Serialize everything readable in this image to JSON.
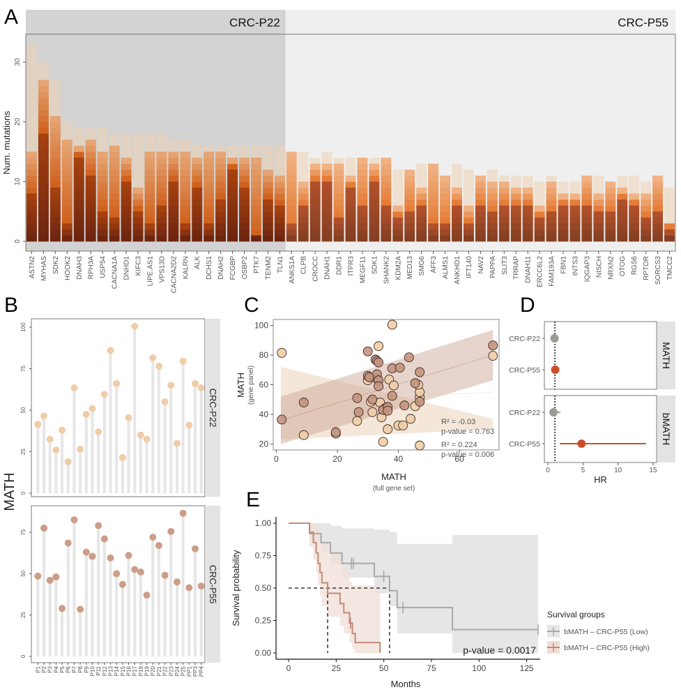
{
  "figure": {
    "panel_labels": [
      "A",
      "B",
      "C",
      "D",
      "E"
    ]
  },
  "chart_data": [
    {
      "panel": "A",
      "type": "bar",
      "stacked": true,
      "ylabel": "Num. mutations",
      "xlabel": "",
      "ylim": [
        0,
        35
      ],
      "yticks": [
        0,
        10,
        20,
        30
      ],
      "facets": [
        {
          "label": "CRC-P22",
          "count": 22
        },
        {
          "label": "CRC-P55",
          "count": 31
        }
      ],
      "categories": [
        "ASTN2",
        "MYHAS",
        "SDK2",
        "HOOK2",
        "DNAH3",
        "RPH3A",
        "USP54",
        "CACNA1A",
        "DNHD1",
        "KIFC3",
        "LIPE.AS1",
        "VPS13D",
        "CACNA2D2",
        "KALRN",
        "ALK",
        "DCHS1",
        "DNAH2",
        "FCGBP",
        "OSBP2",
        "PTK7",
        "TENM2",
        "TLN1",
        "ANKS1A",
        "CLPB",
        "CROCC",
        "DNAH1",
        "DDR1",
        "ITPR3",
        "MEGF11",
        "SDK1",
        "SHANK2",
        "KDM2A",
        "MED13",
        "SMG6",
        "AFF3",
        "ALMS1",
        "ANKHD1",
        "IFT140",
        "NAV2",
        "PAPPA",
        "SLIT3",
        "TRRAP",
        "DNAH11",
        "ERCC6L2",
        "FAM193A",
        "FBN1",
        "INTS3",
        "IQGAP3",
        "NISCH",
        "NRXN2",
        "OTOG",
        "RGS6",
        "RPTOR",
        "SORCS3",
        "TMCC2"
      ],
      "totals": [
        33,
        30,
        27,
        20,
        19,
        19,
        19,
        18,
        18,
        18,
        18,
        18,
        17,
        17,
        16,
        16,
        16,
        16,
        16,
        16,
        16,
        16,
        15,
        15,
        14,
        15,
        14,
        14,
        14,
        14,
        13,
        12,
        12,
        13,
        12,
        11,
        13,
        12,
        11,
        12,
        11,
        11,
        11,
        10,
        11,
        10,
        10,
        11,
        11,
        10,
        11,
        11,
        10,
        11,
        9
      ],
      "solid_heights": [
        15,
        27,
        21,
        17,
        16,
        17,
        15,
        16,
        14,
        9,
        15,
        15,
        15,
        15,
        14,
        15,
        15,
        14,
        14,
        14,
        12,
        11,
        15,
        10,
        13,
        13,
        13,
        11,
        14,
        13,
        14,
        6,
        12,
        9,
        13,
        11,
        9,
        6,
        11,
        10,
        10,
        9,
        9,
        6,
        10,
        8,
        8,
        11,
        8,
        10,
        9,
        8,
        8,
        11,
        3
      ],
      "dark_heights": [
        8,
        18,
        9,
        3,
        14,
        11,
        5,
        4,
        10,
        5,
        3,
        6,
        10,
        3,
        9,
        3,
        7,
        12,
        9,
        1,
        7,
        6,
        3,
        6,
        10,
        10,
        4,
        9,
        6,
        10,
        6,
        4,
        5,
        6,
        3,
        3,
        6,
        3,
        6,
        5,
        6,
        6,
        6,
        4,
        5,
        6,
        6,
        6,
        5,
        5,
        7,
        6,
        4,
        5,
        2
      ],
      "colors": {
        "p22_bg": "#d3d3d3",
        "p55_bg": "#efefef",
        "stack_light": "#ecd2b5",
        "stack_mid": "#e07a35",
        "stack_dark": "#7a2a10"
      }
    },
    {
      "panel": "B",
      "type": "lollipop",
      "ylabel": "MATH",
      "facets": [
        {
          "label": "CRC-P22",
          "ylim": [
            0,
            100
          ],
          "yticks": [
            0,
            25,
            50,
            75,
            100
          ],
          "categories": [
            "P1",
            "P2",
            "P3",
            "P4",
            "P5",
            "P6",
            "P7",
            "P8",
            "P9",
            "P10",
            "P11",
            "P12",
            "P13",
            "P14",
            "P15",
            "P16",
            "P17",
            "P18",
            "P19",
            "P20",
            "P21",
            "P22",
            "P23",
            "P24",
            "P25",
            "PP1",
            "PP3",
            "PP4"
          ],
          "values": [
            41.5,
            46.5,
            32.5,
            26,
            38,
            19,
            63.5,
            26.5,
            47.5,
            51,
            37,
            59.5,
            86,
            66,
            21.5,
            45.5,
            100.5,
            35,
            32.5,
            81.5,
            76.5,
            55,
            65,
            30,
            79.5,
            41,
            66,
            63.5
          ],
          "color": "#efcda9"
        },
        {
          "label": "CRC-P55",
          "ylim": [
            0,
            90
          ],
          "yticks": [
            0,
            25,
            50,
            75
          ],
          "categories": [
            "P1",
            "P2",
            "P3",
            "P4",
            "P5",
            "P6",
            "P7",
            "P8",
            "P9",
            "P10",
            "P11",
            "P12",
            "P13",
            "P14",
            "P15",
            "P16",
            "P17",
            "P18",
            "P19",
            "P20",
            "P21",
            "P22",
            "P23",
            "P24",
            "P25",
            "PP1",
            "PP3",
            "PP4"
          ],
          "values": [
            48.5,
            77.5,
            46,
            48,
            29,
            68.5,
            82.5,
            28.5,
            63,
            60.5,
            79,
            71,
            59.5,
            50,
            43.5,
            61,
            52.5,
            51,
            37,
            72,
            67,
            49,
            75.5,
            45,
            86.5,
            41.5,
            65,
            42.5
          ],
          "color": "#cc9d88"
        }
      ]
    },
    {
      "panel": "C",
      "type": "scatter",
      "xlabel": "MATH",
      "xlabel_sub": "(full gene set)",
      "ylabel": "MATH",
      "ylabel_sub": "(gene panel)",
      "xlim": [
        -1,
        73
      ],
      "ylim": [
        16,
        104
      ],
      "xticks": [
        0,
        20,
        40,
        60
      ],
      "yticks": [
        20,
        40,
        60,
        80,
        100
      ],
      "series": [
        {
          "name": "CRC-P22",
          "color": "#efcda9",
          "r2_label": "R² = -0.03",
          "p_label": "p-value = 0.763",
          "fit": [
            [
              1.5,
              48
            ],
            [
              71,
              55
            ]
          ],
          "points": [
            [
              1.8,
              81.5
            ],
            [
              9,
              26
            ],
            [
              19.5,
              27
            ],
            [
              26.5,
              35.5
            ],
            [
              30,
              63
            ],
            [
              31.5,
              41.5
            ],
            [
              31,
              48.5
            ],
            [
              33.5,
              86
            ],
            [
              34,
              48
            ],
            [
              34.5,
              38
            ],
            [
              35,
              21.5
            ],
            [
              36.5,
              30
            ],
            [
              37,
              63.5
            ],
            [
              38,
              100.5
            ],
            [
              38.5,
              59.5
            ],
            [
              40,
              32.5
            ],
            [
              41.5,
              32.5
            ],
            [
              44,
              37
            ],
            [
              45.5,
              45.5
            ],
            [
              47,
              51.5
            ],
            [
              47,
              55
            ],
            [
              46.5,
              60
            ],
            [
              47,
              19
            ],
            [
              71,
              79.5
            ],
            [
              33,
              64
            ],
            [
              35.5,
              44
            ]
          ]
        },
        {
          "name": "CRC-P55",
          "color": "#c4937e",
          "r2_label": "R² = 0.224",
          "p_label": "p-value = 0.006",
          "fit": [
            [
              1.5,
              36
            ],
            [
              71,
              80
            ]
          ],
          "points": [
            [
              1.8,
              36.5
            ],
            [
              9,
              48
            ],
            [
              19.5,
              28
            ],
            [
              26.5,
              51
            ],
            [
              27,
              41.5
            ],
            [
              30,
              82.5
            ],
            [
              30,
              66
            ],
            [
              31.5,
              50
            ],
            [
              32.5,
              77
            ],
            [
              33,
              76
            ],
            [
              33.5,
              75
            ],
            [
              33,
              67
            ],
            [
              33.5,
              63
            ],
            [
              33.5,
              59
            ],
            [
              35,
              43
            ],
            [
              36.5,
              45
            ],
            [
              36.5,
              42.5
            ],
            [
              38,
              71
            ],
            [
              38,
              52.5
            ],
            [
              40.5,
              71.5
            ],
            [
              42,
              46
            ],
            [
              43.5,
              78.5
            ],
            [
              47,
              68.5
            ],
            [
              45.5,
              61
            ],
            [
              47,
              48.5
            ],
            [
              71,
              86.5
            ],
            [
              30.5,
              65
            ]
          ]
        }
      ]
    },
    {
      "panel": "D",
      "type": "forest",
      "xlabel": "HR",
      "xlim": [
        -0.5,
        15.5
      ],
      "xticks": [
        0,
        5,
        10,
        15
      ],
      "reference_line": 1,
      "facets": [
        {
          "label": "MATH",
          "rows": [
            {
              "label": "CRC-P22",
              "hr": 0.95,
              "lo": 0.85,
              "hi": 1.1,
              "color": "#9e9a96"
            },
            {
              "label": "CRC-P55",
              "hr": 1.05,
              "lo": 0.95,
              "hi": 1.15,
              "color": "#c9502a"
            }
          ]
        },
        {
          "label": "bMATH",
          "rows": [
            {
              "label": "CRC-P22",
              "hr": 0.8,
              "lo": 0.5,
              "hi": 1.8,
              "color": "#9e9a96"
            },
            {
              "label": "CRC-P55",
              "hr": 4.8,
              "lo": 1.7,
              "hi": 14.0,
              "color": "#c9502a"
            }
          ]
        }
      ]
    },
    {
      "panel": "E",
      "type": "line",
      "subtype": "kaplan-meier",
      "xlabel": "Months",
      "ylabel": "Survival probability",
      "xlim": [
        -6,
        133
      ],
      "ylim": [
        -0.04,
        1.04
      ],
      "xticks": [
        0,
        25,
        50,
        75,
        100,
        125
      ],
      "yticks": [
        "0.00",
        "0.25",
        "0.50",
        "0.75",
        "1.00"
      ],
      "pvalue_label": "p-value = 0.0017",
      "legend_title": "Survival groups",
      "legend_position": "right",
      "medians": [
        20.5,
        53
      ],
      "series": [
        {
          "name": "bMATH – CRC-P55 (Low)",
          "color": "#a8a8a8",
          "band_color": "#e6e6e6",
          "steps": [
            [
              0,
              1.0
            ],
            [
              11,
              1.0
            ],
            [
              11,
              0.92
            ],
            [
              17,
              0.92
            ],
            [
              17,
              0.85
            ],
            [
              22,
              0.85
            ],
            [
              22,
              0.77
            ],
            [
              28,
              0.77
            ],
            [
              28,
              0.69
            ],
            [
              45,
              0.69
            ],
            [
              45,
              0.59
            ],
            [
              53,
              0.59
            ],
            [
              53,
              0.48
            ],
            [
              57,
              0.48
            ],
            [
              57,
              0.35
            ],
            [
              86,
              0.35
            ],
            [
              86,
              0.18
            ],
            [
              131,
              0.18
            ]
          ],
          "lower": [
            [
              0,
              1.0
            ],
            [
              11,
              0.86
            ],
            [
              17,
              0.78
            ],
            [
              22,
              0.68
            ],
            [
              28,
              0.58
            ],
            [
              45,
              0.46
            ],
            [
              53,
              0.36
            ],
            [
              57,
              0.15
            ],
            [
              86,
              0.0
            ],
            [
              131,
              0.0
            ]
          ],
          "upper": [
            [
              0,
              1.0
            ],
            [
              11,
              1.0
            ],
            [
              17,
              1.0
            ],
            [
              22,
              0.98
            ],
            [
              28,
              0.96
            ],
            [
              45,
              0.95
            ],
            [
              53,
              0.93
            ],
            [
              57,
              0.84
            ],
            [
              86,
              0.91
            ],
            [
              131,
              0.91
            ]
          ],
          "censor": [
            33,
            34,
            50,
            60,
            131
          ]
        },
        {
          "name": "bMATH – CRC-P55 (High)",
          "color": "#c28a78",
          "band_color": "#f0ddd5",
          "steps": [
            [
              0,
              1.0
            ],
            [
              11,
              1.0
            ],
            [
              11,
              0.93
            ],
            [
              13,
              0.93
            ],
            [
              13,
              0.85
            ],
            [
              14.5,
              0.85
            ],
            [
              14.5,
              0.77
            ],
            [
              15.5,
              0.77
            ],
            [
              15.5,
              0.69
            ],
            [
              16.5,
              0.69
            ],
            [
              16.5,
              0.62
            ],
            [
              17.5,
              0.62
            ],
            [
              17.5,
              0.54
            ],
            [
              20.5,
              0.54
            ],
            [
              20.5,
              0.46
            ],
            [
              27,
              0.46
            ],
            [
              27,
              0.38
            ],
            [
              29,
              0.38
            ],
            [
              29,
              0.31
            ],
            [
              32,
              0.31
            ],
            [
              32,
              0.23
            ],
            [
              33.5,
              0.23
            ],
            [
              33.5,
              0.15
            ],
            [
              35,
              0.15
            ],
            [
              35,
              0.08
            ],
            [
              48,
              0.08
            ],
            [
              48,
              0.0
            ]
          ],
          "lower": [
            [
              0,
              1.0
            ],
            [
              11,
              0.82
            ],
            [
              13,
              0.72
            ],
            [
              14.5,
              0.62
            ],
            [
              15.5,
              0.52
            ],
            [
              16.5,
              0.44
            ],
            [
              17.5,
              0.36
            ],
            [
              20.5,
              0.28
            ],
            [
              27,
              0.21
            ],
            [
              29,
              0.15
            ],
            [
              32,
              0.08
            ],
            [
              33.5,
              0.03
            ],
            [
              35,
              0.0
            ],
            [
              48,
              0.0
            ]
          ],
          "upper": [
            [
              0,
              1.0
            ],
            [
              11,
              1.0
            ],
            [
              13,
              1.0
            ],
            [
              14.5,
              0.98
            ],
            [
              15.5,
              0.95
            ],
            [
              16.5,
              0.9
            ],
            [
              17.5,
              0.85
            ],
            [
              20.5,
              0.78
            ],
            [
              27,
              0.7
            ],
            [
              29,
              0.63
            ],
            [
              32,
              0.55
            ],
            [
              33.5,
              0.52
            ],
            [
              35,
              0.52
            ],
            [
              48,
              0.52
            ]
          ],
          "censor": [
            32.5
          ]
        }
      ]
    }
  ]
}
